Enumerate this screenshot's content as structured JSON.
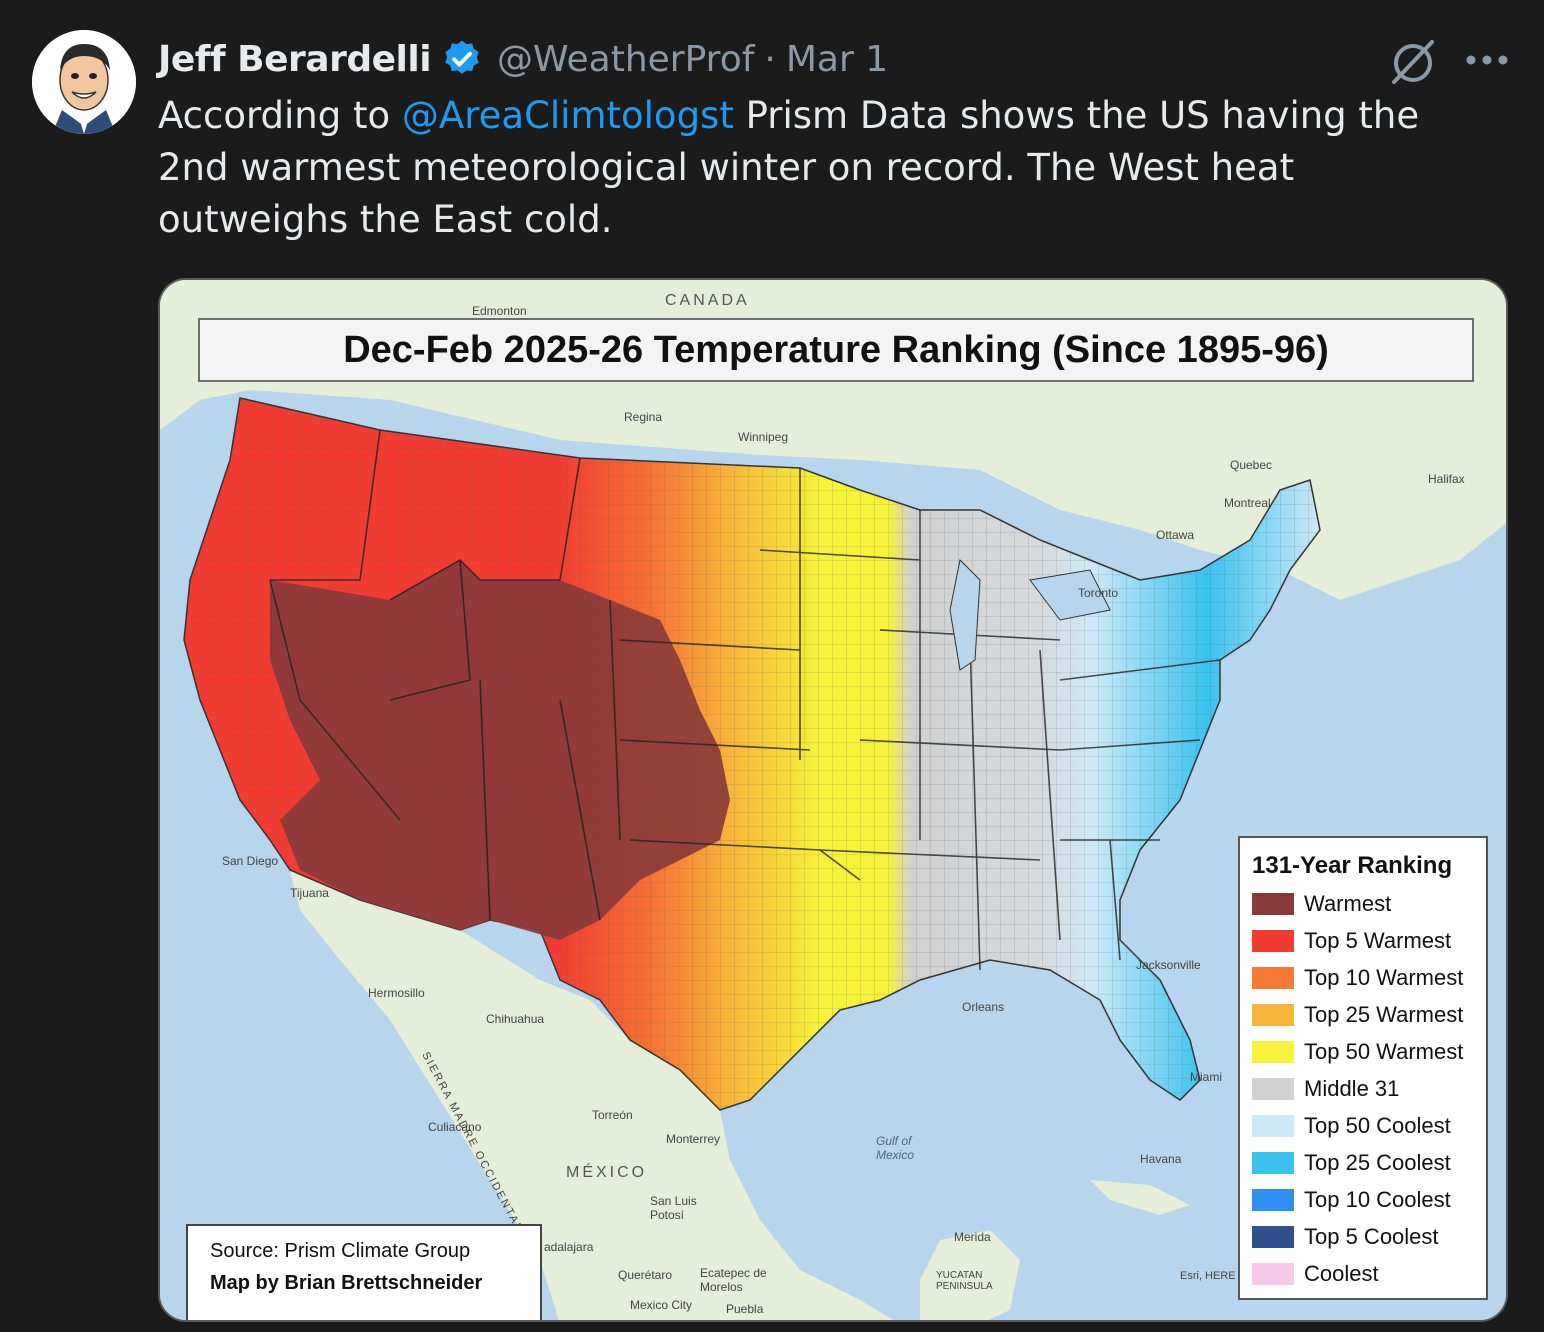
{
  "tweet": {
    "author_name": "Jeff Berardelli",
    "handle": "@WeatherProf",
    "separator": "·",
    "date": "Mar 1",
    "text_before": "According to ",
    "mention": "@AreaClimtologst",
    "text_after": " Prism Data shows the US having the 2nd warmest meteorological winter on record. The West heat outweighs the East cold."
  },
  "icons": {
    "verified": "verified-badge-icon",
    "grok": "grok-icon",
    "more": "more-options-icon"
  },
  "colors": {
    "background": "#1b1b1b",
    "text": "#e7e9ea",
    "secondary_text": "#8b98a5",
    "link": "#1d9bf0",
    "verified": "#1d9bf0"
  },
  "map": {
    "title": "Dec-Feb 2025-26 Temperature Ranking (Since 1895-96)",
    "source": "Source: Prism Climate Group",
    "credit": "Map by Brian Brettschneider",
    "legend_title": "131-Year Ranking",
    "legend": [
      {
        "label": "Warmest",
        "color": "#8b3a3a"
      },
      {
        "label": "Top 5 Warmest",
        "color": "#f23c32"
      },
      {
        "label": "Top 10 Warmest",
        "color": "#f57a35"
      },
      {
        "label": "Top 25 Warmest",
        "color": "#f7b53a"
      },
      {
        "label": "Top 50 Warmest",
        "color": "#f6f23a"
      },
      {
        "label": "Middle 31",
        "color": "#d1d1d1"
      },
      {
        "label": "Top 50 Coolest",
        "color": "#cde9f7"
      },
      {
        "label": "Top 25 Coolest",
        "color": "#39c2ee"
      },
      {
        "label": "Top 10 Coolest",
        "color": "#2f8ff0"
      },
      {
        "label": "Top 5 Coolest",
        "color": "#2f4f8f"
      },
      {
        "label": "Coolest",
        "color": "#f7c7e7"
      }
    ],
    "places": {
      "canada": "CANADA",
      "mexico": "MÉXICO",
      "gulf": "Gulf of Mexico",
      "regina": "Regina",
      "winnipeg": "Winnipeg",
      "edmonton": "Edmonton",
      "montreal": "Montreal",
      "ottawa": "Ottawa",
      "quebec": "Quebec",
      "halifax": "Halifax",
      "toronto": "Toronto",
      "san_diego": "San Diego",
      "tijuana": "Tijuana",
      "hermosillo": "Hermosillo",
      "chihuahua": "Chihuahua",
      "culiacan": "Culiacano",
      "torreon": "Torreón",
      "monterrey": "Monterrey",
      "san_luis": "San Luis Potosí",
      "queretaro": "Querétaro",
      "mexico_city": "Mexico City",
      "puebla": "Puebla",
      "merida": "Merida",
      "havana": "Havana",
      "jacksonville": "Jacksonville",
      "orleans": "Orleans",
      "miami": "Miami",
      "ecatepec": "Ecatepec de Morelos",
      "yucatan": "YUCATAN PENINSULA",
      "esri": "Esri, HERE",
      "guadalajara": "adalajara",
      "sierra": "SIERRA MADRE OCCIDENTAL"
    }
  }
}
